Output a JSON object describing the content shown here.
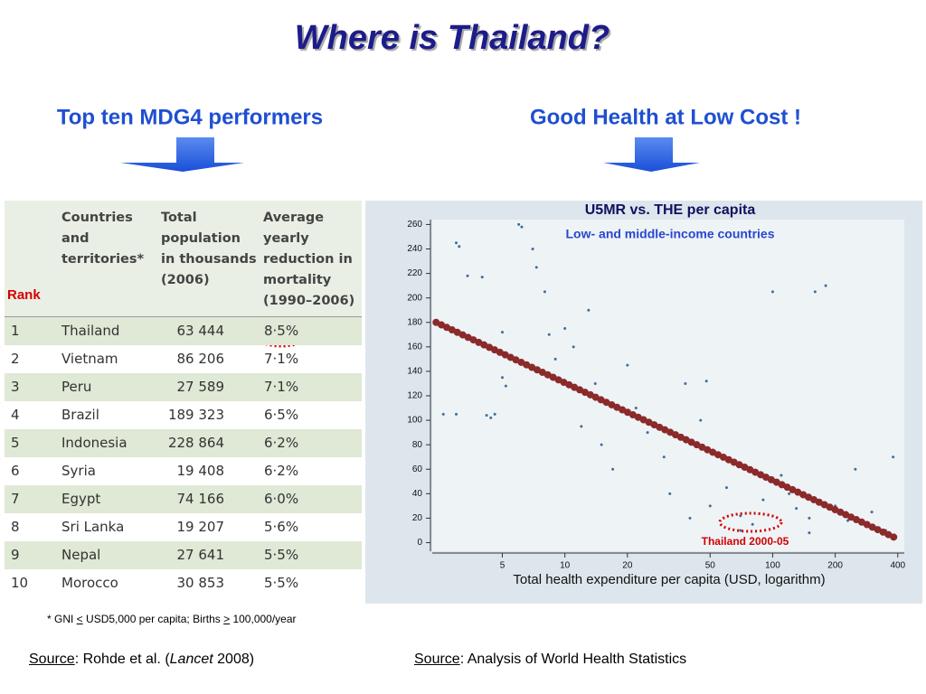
{
  "header": {
    "title": "Where is Thailand?"
  },
  "left": {
    "heading": "Top ten MDG4 performers",
    "rank_label": "Rank",
    "table": {
      "columns": [
        "Countries and territories*",
        "Total population in thousands (2006)",
        "Average yearly reduction in mortality (1990–2006)"
      ],
      "rows": [
        [
          "1",
          "Thailand",
          "63 444",
          "8·5%"
        ],
        [
          "2",
          "Vietnam",
          "86 206",
          "7·1%"
        ],
        [
          "3",
          "Peru",
          "27 589",
          "7·1%"
        ],
        [
          "4",
          "Brazil",
          "189 323",
          "6·5%"
        ],
        [
          "5",
          "Indonesia",
          "228 864",
          "6·2%"
        ],
        [
          "6",
          "Syria",
          "19 408",
          "6·2%"
        ],
        [
          "7",
          "Egypt",
          "74 166",
          "6·0%"
        ],
        [
          "8",
          "Sri Lanka",
          "19 207",
          "5·6%"
        ],
        [
          "9",
          "Nepal",
          "27 641",
          "5·5%"
        ],
        [
          "10",
          "Morocco",
          "30 853",
          "5·5%"
        ]
      ]
    },
    "footnote": [
      "* GNI ",
      "<",
      " USD5,000 per capita; Births ",
      ">",
      " 100,000/year"
    ],
    "source": {
      "label": "Source",
      "text": ": Rohde et al. (",
      "journal": "Lancet",
      "year": " 2008)"
    }
  },
  "right": {
    "heading": "Good Health at Low Cost !",
    "source": {
      "label": "Source",
      "text": ": Analysis of World Health Statistics"
    }
  },
  "chart_data": {
    "type": "scatter",
    "title": "U5MR vs. THE per capita",
    "subtitle": "Low- and middle-income countries",
    "x_label": "Total health expenditure per capita (USD, logarithm)",
    "annotation": "Thailand 2000-05",
    "log_x": true,
    "xlim": [
      2.3,
      430
    ],
    "xticks": [
      5,
      10,
      20,
      50,
      100,
      200,
      400
    ],
    "ylim": [
      -7,
      264
    ],
    "yticks": [
      0,
      20,
      40,
      60,
      80,
      100,
      120,
      140,
      160,
      180,
      200,
      220,
      240,
      260
    ],
    "series": [
      {
        "name": "Countries",
        "color": "#3c6e9a",
        "x": [
          2.6,
          3,
          3,
          3.1,
          3.4,
          4,
          4.2,
          4.6,
          4.4,
          5,
          5,
          5.2,
          6,
          6.2,
          7,
          7.3,
          8,
          8.4,
          9,
          10,
          11,
          12,
          13,
          14,
          15,
          17,
          20,
          22,
          25,
          30,
          32,
          38,
          40,
          45,
          48,
          50,
          60,
          70,
          80,
          90,
          100,
          110,
          120,
          150,
          160,
          180,
          200,
          230,
          250,
          300,
          350,
          380,
          150,
          70,
          130
        ],
        "values": [
          105,
          105,
          245,
          242,
          218,
          217,
          104,
          105,
          102,
          172,
          135,
          128,
          260,
          258,
          240,
          225,
          205,
          170,
          150,
          175,
          160,
          95,
          190,
          130,
          80,
          60,
          145,
          110,
          90,
          70,
          40,
          130,
          20,
          100,
          132,
          30,
          45,
          22,
          15,
          35,
          205,
          55,
          40,
          20,
          205,
          210,
          30,
          18,
          60,
          25,
          10,
          70,
          8,
          10,
          28
        ]
      },
      {
        "name": "Thailand 2000-05 trend",
        "color": "#8b2a2a",
        "x": [
          2.4,
          5,
          10,
          20,
          50,
          100,
          200,
          400
        ],
        "values": [
          180,
          154.6,
          130.6,
          106.6,
          74.9,
          50.9,
          26.9,
          3
        ]
      }
    ]
  }
}
